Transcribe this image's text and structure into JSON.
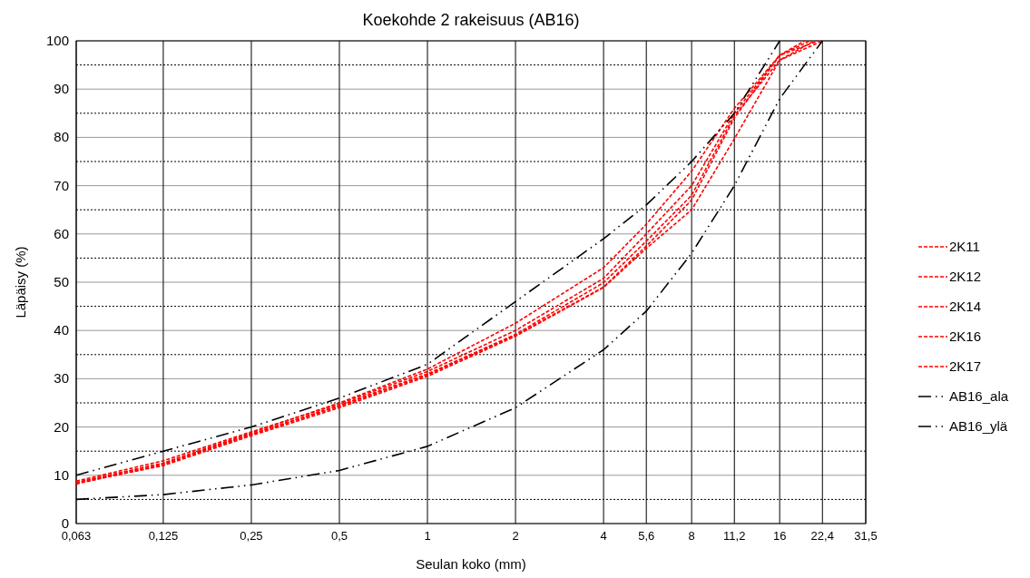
{
  "chart_data": {
    "type": "line",
    "title": "Koekohde 2 rakeisuus (AB16)",
    "xlabel": "Seulan koko (mm)",
    "ylabel": "Läpäisy (%)",
    "log": "x",
    "x": [
      0.063,
      0.125,
      0.25,
      0.5,
      1,
      2,
      4,
      5.6,
      8,
      11.2,
      16,
      22.4
    ],
    "series": [
      {
        "name": "2K11",
        "color": "#ff0000",
        "line_style": "dashed",
        "x": [
          0.063,
          0.125,
          0.25,
          0.5,
          1,
          2,
          4,
          5.6,
          8,
          11.2,
          16,
          19.5
        ],
        "values": [
          8.5,
          12.5,
          18.8,
          25,
          32,
          41.5,
          53,
          62,
          73,
          86,
          97,
          100
        ]
      },
      {
        "name": "2K12",
        "color": "#ff0000",
        "line_style": "dashed",
        "x": [
          0.063,
          0.125,
          0.25,
          0.5,
          1,
          2,
          4,
          5.6,
          8,
          11.2,
          16,
          20.3
        ],
        "values": [
          8.8,
          13,
          19,
          24.8,
          31.5,
          40,
          50.8,
          60,
          70,
          85,
          97,
          100
        ]
      },
      {
        "name": "2K14",
        "color": "#ff0000",
        "line_style": "dashed",
        "x": [
          0.063,
          0.125,
          0.25,
          0.5,
          1,
          2,
          4,
          5.6,
          8,
          11.2,
          16,
          21
        ],
        "values": [
          8.2,
          12.2,
          18.5,
          24.5,
          31,
          39.2,
          49.9,
          58.5,
          68,
          84.5,
          96,
          100
        ]
      },
      {
        "name": "2K16",
        "color": "#ff0000",
        "line_style": "dashed",
        "x": [
          0.063,
          0.125,
          0.25,
          0.5,
          1,
          2,
          4,
          5.6,
          8,
          11.2,
          16,
          21.7
        ],
        "values": [
          8.5,
          12.5,
          18.5,
          24.3,
          30.8,
          39,
          49,
          57.5,
          67,
          84,
          97,
          100
        ]
      },
      {
        "name": "2K17",
        "color": "#ff0000",
        "line_style": "dashed",
        "values": [
          8.4,
          12,
          18.2,
          24,
          30.5,
          38.8,
          48.9,
          57,
          65,
          79.7,
          96,
          100
        ]
      },
      {
        "name": "AB16_ala",
        "color": "#000000",
        "line_style": "dashdot",
        "values": [
          5,
          6,
          8,
          11,
          16,
          24,
          36,
          44,
          56,
          70,
          88,
          100
        ]
      },
      {
        "name": "AB16_ylä",
        "color": "#000000",
        "line_style": "dashdot",
        "x": [
          0.063,
          0.125,
          0.25,
          0.5,
          1,
          2,
          4,
          5.6,
          8,
          11.2,
          16
        ],
        "values": [
          10,
          15,
          20,
          26,
          33,
          46,
          59,
          66,
          75,
          85,
          100
        ]
      }
    ],
    "xlim": [
      0.063,
      31.5
    ],
    "xticks": [
      {
        "value": 0.063,
        "label": "0,063"
      },
      {
        "value": 0.125,
        "label": "0,125"
      },
      {
        "value": 0.25,
        "label": "0,25"
      },
      {
        "value": 0.5,
        "label": "0,5"
      },
      1,
      2,
      4,
      {
        "value": 5.6,
        "label": "5,6"
      },
      8,
      {
        "value": 11.2,
        "label": "11,2"
      },
      16,
      {
        "value": 22.4,
        "label": "22,4"
      },
      {
        "value": 31.5,
        "label": "31,5"
      }
    ],
    "ylim": [
      0,
      100
    ],
    "yticks": [
      0,
      {
        "value": 5,
        "label": null
      },
      10,
      {
        "value": 15,
        "label": null
      },
      20,
      {
        "value": 25,
        "label": null
      },
      30,
      {
        "value": 35,
        "label": null
      },
      40,
      {
        "value": 45,
        "label": null
      },
      50,
      {
        "value": 55,
        "label": null
      },
      60,
      {
        "value": 65,
        "label": null
      },
      70,
      {
        "value": 75,
        "label": null
      },
      80,
      {
        "value": 85,
        "label": null
      },
      90,
      {
        "value": 95,
        "label": null
      },
      100
    ],
    "grid": true,
    "legend": "right",
    "marker": "none"
  }
}
